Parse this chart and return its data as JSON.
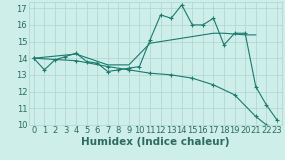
{
  "xlabel": "Humidex (Indice chaleur)",
  "background_color": "#ceeee9",
  "grid_color": "#aed4cf",
  "line_color": "#1a7a6e",
  "xlim": [
    -0.5,
    23.5
  ],
  "ylim": [
    10,
    17.4
  ],
  "yticks": [
    10,
    11,
    12,
    13,
    14,
    15,
    16,
    17
  ],
  "xticks": [
    0,
    1,
    2,
    3,
    4,
    5,
    6,
    7,
    8,
    9,
    10,
    11,
    12,
    13,
    14,
    15,
    16,
    17,
    18,
    19,
    20,
    21,
    22,
    23
  ],
  "series1_x": [
    0,
    1,
    2,
    3,
    4,
    5,
    6,
    7,
    8,
    9,
    10,
    11,
    12,
    13,
    14,
    15,
    16,
    17,
    18,
    19,
    20,
    21,
    22,
    23
  ],
  "series1_y": [
    14.0,
    13.3,
    13.9,
    14.1,
    14.3,
    13.8,
    13.7,
    13.2,
    13.3,
    13.4,
    13.5,
    15.1,
    16.6,
    16.4,
    17.2,
    16.0,
    16.0,
    16.4,
    14.8,
    15.5,
    15.5,
    12.3,
    11.2,
    10.3
  ],
  "series2_x": [
    0,
    4,
    7,
    9,
    11,
    13,
    15,
    17,
    18,
    20,
    21
  ],
  "series2_y": [
    14.0,
    14.25,
    13.6,
    13.6,
    14.9,
    15.1,
    15.3,
    15.5,
    15.5,
    15.4,
    15.4
  ],
  "series3_x": [
    0,
    4,
    7,
    9,
    11,
    13,
    15,
    17,
    19,
    21,
    22,
    23
  ],
  "series3_y": [
    14.0,
    13.85,
    13.5,
    13.3,
    13.1,
    13.0,
    12.8,
    12.4,
    11.8,
    10.5,
    10.0,
    9.8
  ],
  "font_color": "#2d6b5e",
  "tick_fontsize": 6,
  "label_fontsize": 7.5
}
